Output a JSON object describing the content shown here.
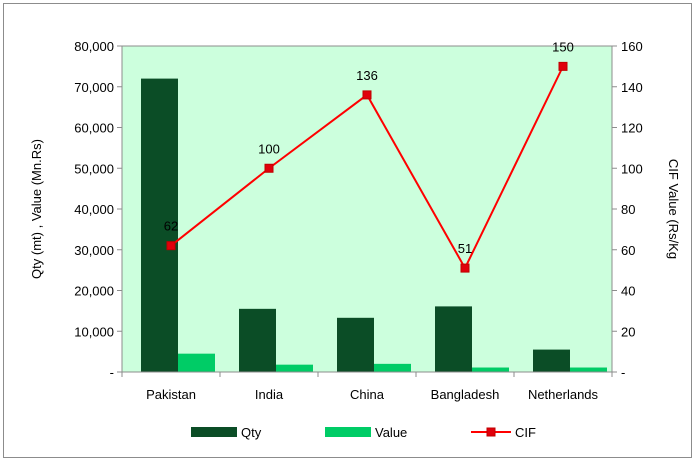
{
  "chart_data": {
    "type": "bar",
    "title": "",
    "categories": [
      "Pakistan",
      "India",
      "China",
      "Bangladesh",
      "Netherlands"
    ],
    "series": [
      {
        "name": "Qty",
        "kind": "bar",
        "axis": "left",
        "color": "#0b4d26",
        "values": [
          72000,
          15500,
          13300,
          16100,
          5500
        ]
      },
      {
        "name": "Value",
        "kind": "bar",
        "axis": "left",
        "color": "#00cc66",
        "values": [
          4500,
          1800,
          2000,
          1100,
          1100
        ]
      },
      {
        "name": "CIF",
        "kind": "line",
        "axis": "right",
        "color": "#ff0000",
        "marker_color": "#e0000b",
        "values": [
          62,
          100,
          136,
          51,
          150
        ]
      }
    ],
    "ylabel": "Qty  (mt) , Value (Mn.Rs)",
    "y2label": "CIF Value (Rs/Kg",
    "ylim": [
      0,
      80000
    ],
    "y2lim": [
      0,
      160
    ],
    "yticks": [
      0,
      10000,
      20000,
      30000,
      40000,
      50000,
      60000,
      70000,
      80000
    ],
    "ytick_labels": [
      "-",
      "10,000",
      "20,000",
      "30,000",
      "40,000",
      "50,000",
      "60,000",
      "70,000",
      "80,000"
    ],
    "y2ticks": [
      0,
      20,
      40,
      60,
      80,
      100,
      120,
      140,
      160
    ],
    "y2tick_labels": [
      "-",
      "20",
      "40",
      "60",
      "80",
      "100",
      "120",
      "140",
      "160"
    ],
    "data_labels": [
      "62",
      "100",
      "136",
      "51",
      "150"
    ],
    "plot_background": "#ccffdd",
    "grid": false,
    "legend_position": "bottom"
  }
}
